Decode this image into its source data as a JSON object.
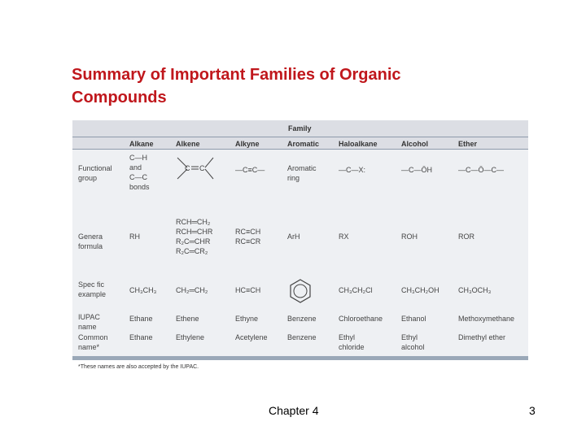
{
  "slide": {
    "title_line1": "Summary of Important Families of Organic",
    "title_line2": "Compounds",
    "footer_chapter": "Chapter 4",
    "page_number": "3",
    "colors": {
      "title": "#c0171c",
      "table_band": "#dcdee4",
      "table_body": "#eef0f3",
      "rule": "#8e9aab"
    }
  },
  "table": {
    "family_label": "Family",
    "columns": [
      "Alkane",
      "Alkene",
      "Alkyne",
      "Aromatic",
      "Haloalkane",
      "Alcohol",
      "Ether"
    ],
    "rows": {
      "functional_group": {
        "label": [
          "Functional",
          "group"
        ],
        "alkane": [
          "C—H",
          "and",
          "C—C",
          "bonds"
        ],
        "alkene": "C=C",
        "alkyne": "—C≡C—",
        "aromatic": [
          "Aromatic",
          "ring"
        ],
        "haloalkane": "—C—X:",
        "alcohol": "—C—ÖH",
        "ether": "—C—Ö—C—"
      },
      "general_formula": {
        "label": [
          "Genera",
          "formula"
        ],
        "alkane": "RH",
        "alkene": [
          "RCH═CH₂",
          "RCH═CHR",
          "R₂C═CHR",
          "R₂C═CR₂"
        ],
        "alkyne": [
          "RC≡CH",
          "RC≡CR"
        ],
        "aromatic": "ArH",
        "haloalkane": "RX",
        "alcohol": "ROH",
        "ether": "ROR"
      },
      "specific_example": {
        "label": [
          "Spec fic",
          "example"
        ],
        "alkane": "CH₃CH₃",
        "alkene": "CH₂═CH₂",
        "alkyne": "HC≡CH",
        "aromatic": "benzene-ring",
        "haloalkane": "CH₃CH₂Cl",
        "alcohol": "CH₃CH₂OH",
        "ether": "CH₃OCH₃"
      },
      "iupac_name": {
        "label": [
          "IUPAC",
          "name"
        ],
        "alkane": "Ethane",
        "alkene": "Ethene",
        "alkyne": "Ethyne",
        "aromatic": "Benzene",
        "haloalkane": "Chloroethane",
        "alcohol": "Ethanol",
        "ether": "Methoxymethane"
      },
      "common_name": {
        "label": [
          "Common",
          "name*"
        ],
        "alkane": "Ethane",
        "alkene": "Ethylene",
        "alkyne": "Acetylene",
        "aromatic": "Benzene",
        "haloalkane": [
          "Ethyl",
          "chloride"
        ],
        "alcohol": [
          "Ethyl",
          "alcohol"
        ],
        "ether": "Dimethyl ether"
      }
    },
    "footnote": "*These names are also accepted by the IUPAC."
  }
}
